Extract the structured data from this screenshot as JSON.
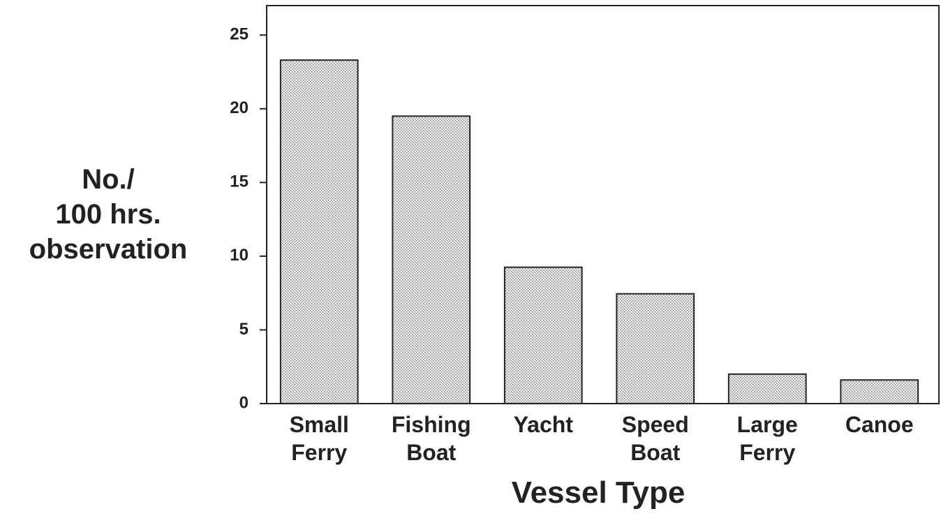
{
  "chart_data": {
    "type": "bar",
    "x_label": "Vessel Type",
    "y_label": "No./\n100 hrs.\nobservation",
    "categories": [
      "Small\nFerry",
      "Fishing\nBoat",
      "Yacht",
      "Speed\nBoat",
      "Large\nFerry",
      "Canoe"
    ],
    "values": [
      23.3,
      19.5,
      9.25,
      7.45,
      2.0,
      1.6
    ],
    "color": "#d8d8d8",
    "ylim": [
      0,
      27
    ],
    "yticks": [
      0,
      5,
      10,
      15,
      20,
      25
    ],
    "grid": false
  }
}
